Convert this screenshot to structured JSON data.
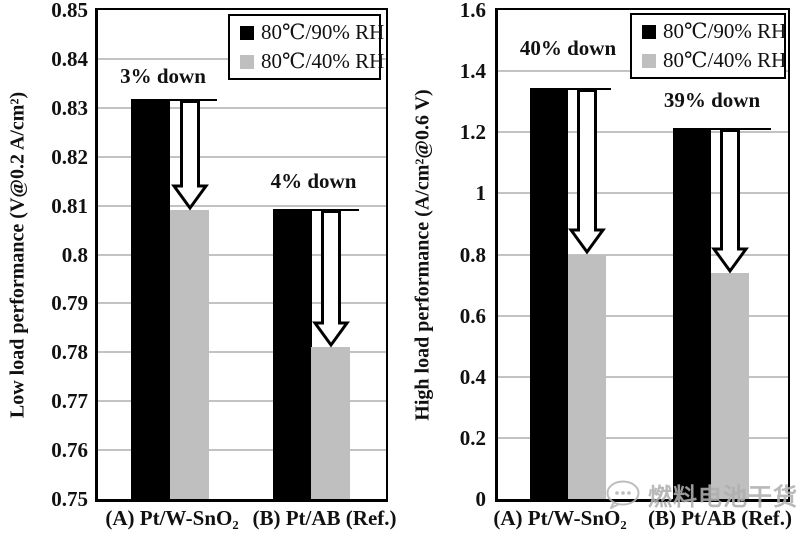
{
  "figure": {
    "background": "#ffffff"
  },
  "legend": {
    "items": [
      {
        "label": "80℃/90% RH",
        "color": "#000000"
      },
      {
        "label": "80℃/40% RH",
        "color": "#bfbfbf"
      }
    ]
  },
  "watermark": {
    "icon": "chat-bubble-icon",
    "text": "燃料电池干货"
  },
  "chart_data": [
    {
      "type": "bar",
      "title": "",
      "ylabel": "Low load performance (V@0.2 A/cm²)",
      "xlabel": "",
      "categories": [
        "(A) Pt/W-SnO₂",
        "(B) Pt/AB (Ref.)"
      ],
      "series": [
        {
          "name": "80℃/90% RH",
          "color": "#000000",
          "values": [
            0.8315,
            0.809
          ]
        },
        {
          "name": "80℃/40% RH",
          "color": "#bfbfbf",
          "values": [
            0.809,
            0.781
          ]
        }
      ],
      "annotations": [
        {
          "text": "3% down",
          "category": "(A) Pt/W-SnO₂"
        },
        {
          "text": "4% down",
          "category": "(B) Pt/AB (Ref.)"
        }
      ],
      "ylim": [
        0.75,
        0.85
      ],
      "yticks": [
        "0.85",
        "0.84",
        "0.83",
        "0.82",
        "0.81",
        "0.8",
        "0.79",
        "0.78",
        "0.77",
        "0.76",
        "0.75"
      ],
      "grid": true,
      "legend_position": "top-right"
    },
    {
      "type": "bar",
      "title": "",
      "ylabel": "High load performance (A/cm²@0.6 V)",
      "xlabel": "",
      "categories": [
        "(A) Pt/W-SnO₂",
        "(B) Pt/AB (Ref.)"
      ],
      "series": [
        {
          "name": "80℃/90% RH",
          "color": "#000000",
          "values": [
            1.34,
            1.21
          ]
        },
        {
          "name": "80℃/40% RH",
          "color": "#bfbfbf",
          "values": [
            0.8,
            0.74
          ]
        }
      ],
      "annotations": [
        {
          "text": "40% down",
          "category": "(A) Pt/W-SnO₂"
        },
        {
          "text": "39% down",
          "category": "(B) Pt/AB (Ref.)"
        }
      ],
      "ylim": [
        0,
        1.6
      ],
      "yticks": [
        "1.6",
        "1.4",
        "1.2",
        "1",
        "0.8",
        "0.6",
        "0.4",
        "0.2",
        "0"
      ],
      "grid": true,
      "legend_position": "top-right"
    }
  ]
}
